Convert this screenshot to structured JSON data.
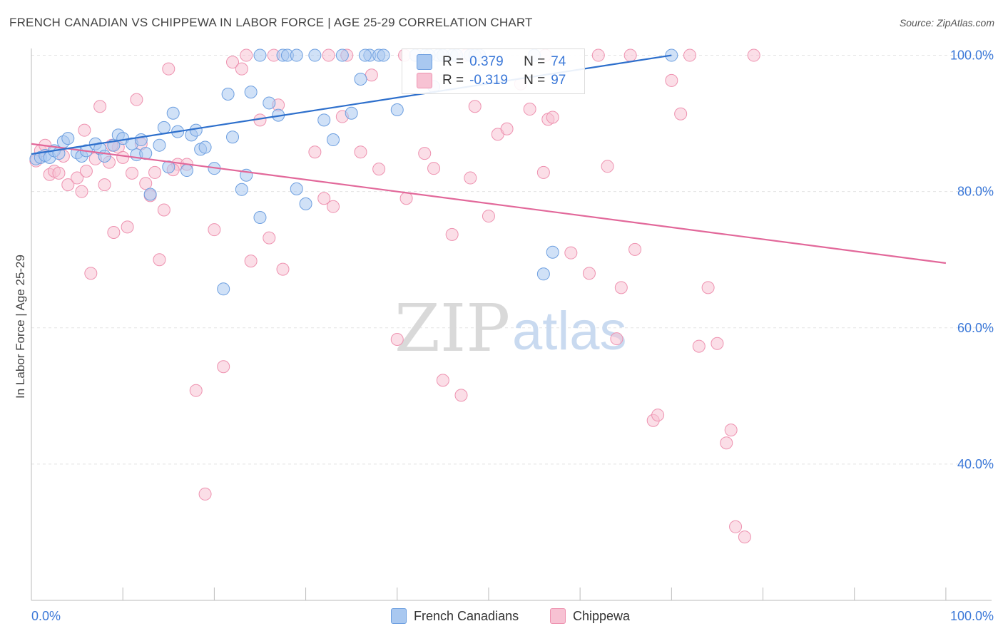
{
  "header": {
    "title": "FRENCH CANADIAN VS CHIPPEWA IN LABOR FORCE | AGE 25-29 CORRELATION CHART",
    "source": "Source: ZipAtlas.com"
  },
  "watermark": {
    "part1": "ZIP",
    "part2": "atlas"
  },
  "colors": {
    "blue_fill": "#a9c8f0",
    "blue_stroke": "#6d9fe0",
    "blue_line": "#2d6fcc",
    "pink_fill": "#f7c2d3",
    "pink_stroke": "#ee92b0",
    "pink_line": "#e2689a",
    "tick_text": "#3b78d8"
  },
  "stats": {
    "r_label": "R =",
    "n_label": "N =",
    "french": {
      "r": "0.379",
      "n": "74"
    },
    "chippewa": {
      "r": "-0.319",
      "n": "97"
    }
  },
  "legend": {
    "french": "French Canadians",
    "chippewa": "Chippewa"
  },
  "chart_data": {
    "type": "scatter",
    "title": "FRENCH CANADIAN VS CHIPPEWA IN LABOR FORCE | AGE 25-29 CORRELATION CHART",
    "xlabel": "",
    "ylabel": "In Labor Force | Age 25-29",
    "xlim": [
      0,
      105
    ],
    "ylim": [
      20,
      101
    ],
    "x_tick_labels": [
      "0.0%",
      "100.0%"
    ],
    "y_tick_labels": [
      "40.0%",
      "60.0%",
      "80.0%",
      "100.0%"
    ],
    "y_ticks": [
      40,
      60,
      80,
      100
    ],
    "grid": true,
    "legend_position": "bottom-center",
    "series": [
      {
        "name": "French Canadians",
        "trend": {
          "x": [
            0,
            70
          ],
          "y": [
            85.5,
            100
          ]
        },
        "points": [
          [
            0.5,
            84.8
          ],
          [
            1,
            85
          ],
          [
            1.5,
            85.3
          ],
          [
            2,
            85
          ],
          [
            2.5,
            86
          ],
          [
            3,
            85.6
          ],
          [
            3.5,
            87.3
          ],
          [
            4,
            87.8
          ],
          [
            5,
            85.7
          ],
          [
            5.5,
            85.2
          ],
          [
            6,
            86
          ],
          [
            7,
            87
          ],
          [
            7.5,
            86.3
          ],
          [
            8,
            85.2
          ],
          [
            9,
            86.8
          ],
          [
            9.5,
            88.3
          ],
          [
            10,
            87.8
          ],
          [
            11,
            87
          ],
          [
            11.5,
            85.4
          ],
          [
            12,
            87.6
          ],
          [
            12.5,
            85.6
          ],
          [
            13,
            79.6
          ],
          [
            14,
            86.8
          ],
          [
            14.5,
            89.4
          ],
          [
            15,
            83.6
          ],
          [
            15.5,
            91.5
          ],
          [
            16,
            88.8
          ],
          [
            17,
            83.1
          ],
          [
            17.5,
            88.3
          ],
          [
            18,
            89
          ],
          [
            18.5,
            86.2
          ],
          [
            19,
            86.5
          ],
          [
            20,
            83.4
          ],
          [
            21,
            65.7
          ],
          [
            21.5,
            94.3
          ],
          [
            22,
            88
          ],
          [
            23,
            80.3
          ],
          [
            23.5,
            82.4
          ],
          [
            24,
            94.6
          ],
          [
            25,
            76.2
          ],
          [
            26,
            93
          ],
          [
            27,
            91.2
          ],
          [
            27.5,
            100
          ],
          [
            28,
            100
          ],
          [
            29,
            80.4
          ],
          [
            30,
            78.2
          ],
          [
            32,
            90.5
          ],
          [
            33,
            87.6
          ],
          [
            35,
            91.5
          ],
          [
            36,
            96.5
          ],
          [
            37,
            100
          ],
          [
            38,
            100
          ],
          [
            40,
            92
          ],
          [
            43,
            100
          ],
          [
            44,
            95.4
          ],
          [
            44.5,
            100
          ],
          [
            46,
            100
          ],
          [
            48,
            100
          ],
          [
            49,
            100
          ],
          [
            55,
            100
          ],
          [
            56,
            67.9
          ],
          [
            57,
            71.1
          ],
          [
            70,
            100
          ],
          [
            25,
            100
          ],
          [
            29,
            100
          ],
          [
            31,
            100
          ],
          [
            34,
            100
          ],
          [
            36.5,
            100
          ],
          [
            38.5,
            100
          ],
          [
            42,
            100
          ],
          [
            43.5,
            100
          ],
          [
            45,
            100
          ],
          [
            46.5,
            100
          ],
          [
            48.5,
            100
          ]
        ]
      },
      {
        "name": "Chippewa",
        "trend": {
          "x": [
            0,
            100
          ],
          "y": [
            87,
            69.5
          ]
        },
        "points": [
          [
            0.5,
            84.5
          ],
          [
            1,
            86
          ],
          [
            1.5,
            86.8
          ],
          [
            2,
            82.5
          ],
          [
            2.5,
            83
          ],
          [
            3,
            82.7
          ],
          [
            4,
            81
          ],
          [
            5,
            82
          ],
          [
            5.5,
            80
          ],
          [
            5.8,
            89
          ],
          [
            6,
            83
          ],
          [
            6.5,
            68
          ],
          [
            7,
            84.8
          ],
          [
            7.5,
            92.5
          ],
          [
            8,
            81
          ],
          [
            8.5,
            84.3
          ],
          [
            9,
            74
          ],
          [
            9.5,
            86.5
          ],
          [
            10,
            85
          ],
          [
            10.5,
            74.8
          ],
          [
            11,
            82.7
          ],
          [
            11.5,
            93.5
          ],
          [
            12,
            87
          ],
          [
            12.5,
            81.2
          ],
          [
            13,
            79.4
          ],
          [
            13.5,
            82.8
          ],
          [
            14,
            70
          ],
          [
            14.5,
            77.3
          ],
          [
            15,
            98
          ],
          [
            16,
            84
          ],
          [
            17,
            84
          ],
          [
            18,
            50.8
          ],
          [
            19,
            35.6
          ],
          [
            20,
            74.4
          ],
          [
            21,
            54.3
          ],
          [
            22,
            99
          ],
          [
            23,
            98
          ],
          [
            24,
            69.8
          ],
          [
            25,
            90.5
          ],
          [
            26,
            73.2
          ],
          [
            27,
            92.7
          ],
          [
            27.5,
            68.6
          ],
          [
            31,
            85.8
          ],
          [
            32,
            79
          ],
          [
            33,
            77.8
          ],
          [
            34,
            91
          ],
          [
            36,
            85.8
          ],
          [
            38,
            83.3
          ],
          [
            40,
            58.3
          ],
          [
            41,
            79
          ],
          [
            43,
            85.6
          ],
          [
            44,
            83.4
          ],
          [
            45,
            52.3
          ],
          [
            46,
            73.7
          ],
          [
            47,
            50.1
          ],
          [
            48,
            82
          ],
          [
            48.5,
            92.5
          ],
          [
            50,
            76.4
          ],
          [
            51,
            88.4
          ],
          [
            52,
            89.2
          ],
          [
            53.5,
            95.8
          ],
          [
            54.5,
            92.1
          ],
          [
            56,
            82.8
          ],
          [
            56.5,
            90.6
          ],
          [
            57,
            90.9
          ],
          [
            59,
            71
          ],
          [
            61,
            68
          ],
          [
            62,
            100
          ],
          [
            63,
            83.7
          ],
          [
            64,
            58.4
          ],
          [
            64.5,
            65.9
          ],
          [
            66,
            71.5
          ],
          [
            68,
            46.4
          ],
          [
            68.5,
            47.2
          ],
          [
            70,
            96.3
          ],
          [
            71,
            91.4
          ],
          [
            72,
            100
          ],
          [
            73,
            57.3
          ],
          [
            74,
            65.9
          ],
          [
            75,
            57.7
          ],
          [
            76,
            43.1
          ],
          [
            76.5,
            45
          ],
          [
            77,
            30.8
          ],
          [
            78,
            29.3
          ],
          [
            79,
            100
          ],
          [
            3.5,
            85.2
          ],
          [
            8.8,
            86.8
          ],
          [
            15.5,
            83.2
          ],
          [
            23.5,
            100
          ],
          [
            26.5,
            100
          ],
          [
            32.5,
            100
          ],
          [
            34.5,
            100
          ],
          [
            37.2,
            97.1
          ],
          [
            40.8,
            100
          ],
          [
            47.5,
            100
          ],
          [
            56.2,
            100
          ],
          [
            65.5,
            100
          ]
        ]
      }
    ]
  }
}
